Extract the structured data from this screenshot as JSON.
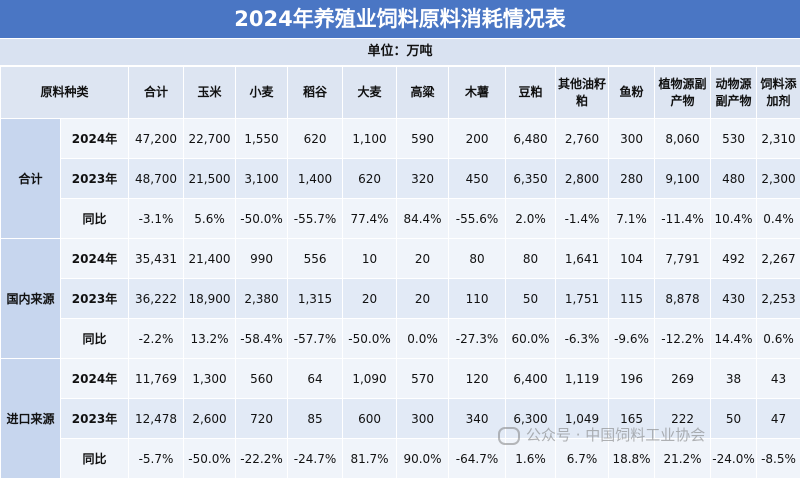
{
  "title": "2024年养殖业饲料原料消耗情况表",
  "unit": "单位：万吨",
  "columns": [
    "原料种类",
    "合计",
    "玉米",
    "小麦",
    "稻谷",
    "大麦",
    "高粱",
    "木薯",
    "豆粕",
    "其他油籽粕",
    "鱼粉",
    "植物源副产物",
    "动物源副产物",
    "饲料添加剂"
  ],
  "groups": [
    {
      "name": "合计",
      "rows": [
        {
          "label": "2024年",
          "values": [
            "47,200",
            "22,700",
            "1,550",
            "620",
            "1,100",
            "590",
            "200",
            "6,480",
            "2,760",
            "300",
            "8,060",
            "530",
            "2,310"
          ]
        },
        {
          "label": "2023年",
          "values": [
            "48,700",
            "21,500",
            "3,100",
            "1,400",
            "620",
            "320",
            "450",
            "6,350",
            "2,800",
            "280",
            "9,100",
            "480",
            "2,300"
          ]
        },
        {
          "label": "同比",
          "values": [
            "-3.1%",
            "5.6%",
            "-50.0%",
            "-55.7%",
            "77.4%",
            "84.4%",
            "-55.6%",
            "2.0%",
            "-1.4%",
            "7.1%",
            "-11.4%",
            "10.4%",
            "0.4%"
          ]
        }
      ]
    },
    {
      "name": "国内来源",
      "rows": [
        {
          "label": "2024年",
          "values": [
            "35,431",
            "21,400",
            "990",
            "556",
            "10",
            "20",
            "80",
            "80",
            "1,641",
            "104",
            "7,791",
            "492",
            "2,267"
          ]
        },
        {
          "label": "2023年",
          "values": [
            "36,222",
            "18,900",
            "2,380",
            "1,315",
            "20",
            "20",
            "110",
            "50",
            "1,751",
            "115",
            "8,878",
            "430",
            "2,253"
          ]
        },
        {
          "label": "同比",
          "values": [
            "-2.2%",
            "13.2%",
            "-58.4%",
            "-57.7%",
            "-50.0%",
            "0.0%",
            "-27.3%",
            "60.0%",
            "-6.3%",
            "-9.6%",
            "-12.2%",
            "14.4%",
            "0.6%"
          ]
        }
      ]
    },
    {
      "name": "进口来源",
      "rows": [
        {
          "label": "2024年",
          "values": [
            "11,769",
            "1,300",
            "560",
            "64",
            "1,090",
            "570",
            "120",
            "6,400",
            "1,119",
            "196",
            "269",
            "38",
            "43"
          ]
        },
        {
          "label": "2023年",
          "values": [
            "12,478",
            "2,600",
            "720",
            "85",
            "600",
            "300",
            "340",
            "6,300",
            "1,049",
            "165",
            "222",
            "50",
            "47"
          ]
        },
        {
          "label": "同比",
          "values": [
            "-5.7%",
            "-50.0%",
            "-22.2%",
            "-24.7%",
            "81.7%",
            "90.0%",
            "-64.7%",
            "1.6%",
            "6.7%",
            "18.8%",
            "21.2%",
            "-24.0%",
            "-8.5%"
          ]
        }
      ]
    }
  ],
  "watermark": "公众号 · 中国饲料工业协会",
  "colors": {
    "title_bg": "#4a76c4",
    "unit_bg": "#d9e2f1",
    "header_bg": "#dde5f2",
    "group_bg": "#c7d6ee"
  }
}
